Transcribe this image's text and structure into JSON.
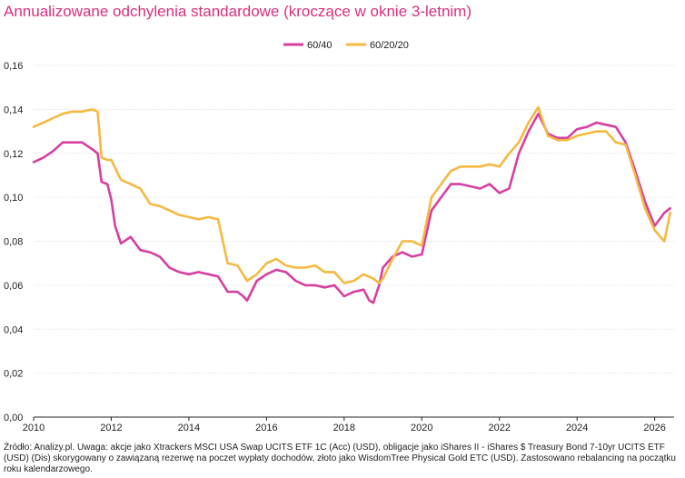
{
  "chart_data": {
    "type": "line",
    "title": "Annualizowane odchylenia standardowe (kroczące w oknie 3-letnim)",
    "xlim": [
      2010,
      2026.5
    ],
    "ylim": [
      0,
      0.16
    ],
    "x_ticks": [
      "2010",
      "2012",
      "2014",
      "2016",
      "2018",
      "2020",
      "2022",
      "2024",
      "2026"
    ],
    "y_ticks": [
      "0,00",
      "0,02",
      "0,04",
      "0,06",
      "0,08",
      "0,10",
      "0,12",
      "0,14",
      "0,16"
    ],
    "grid": "horizontal",
    "legend_position": "top-right",
    "series": [
      {
        "name": "60/40",
        "color": "#d63fa0",
        "x": [
          2010.0,
          2010.25,
          2010.5,
          2010.75,
          2011.0,
          2011.25,
          2011.5,
          2011.65,
          2011.75,
          2011.9,
          2012.0,
          2012.1,
          2012.25,
          2012.5,
          2012.75,
          2013.0,
          2013.25,
          2013.5,
          2013.75,
          2014.0,
          2014.25,
          2014.5,
          2014.75,
          2015.0,
          2015.25,
          2015.4,
          2015.5,
          2015.75,
          2016.0,
          2016.25,
          2016.5,
          2016.75,
          2017.0,
          2017.25,
          2017.5,
          2017.75,
          2018.0,
          2018.25,
          2018.5,
          2018.65,
          2018.75,
          2018.9,
          2019.0,
          2019.25,
          2019.5,
          2019.75,
          2020.0,
          2020.25,
          2020.5,
          2020.75,
          2021.0,
          2021.25,
          2021.5,
          2021.75,
          2022.0,
          2022.25,
          2022.5,
          2022.75,
          2023.0,
          2023.25,
          2023.5,
          2023.75,
          2024.0,
          2024.25,
          2024.5,
          2024.75,
          2025.0,
          2025.25,
          2025.5,
          2025.75,
          2026.0,
          2026.25,
          2026.4
        ],
        "values": [
          0.116,
          0.118,
          0.121,
          0.125,
          0.125,
          0.125,
          0.122,
          0.12,
          0.107,
          0.106,
          0.099,
          0.087,
          0.079,
          0.082,
          0.076,
          0.075,
          0.073,
          0.068,
          0.066,
          0.065,
          0.066,
          0.065,
          0.064,
          0.057,
          0.057,
          0.055,
          0.053,
          0.062,
          0.065,
          0.067,
          0.066,
          0.062,
          0.06,
          0.06,
          0.059,
          0.06,
          0.055,
          0.057,
          0.058,
          0.053,
          0.052,
          0.06,
          0.068,
          0.073,
          0.075,
          0.073,
          0.074,
          0.094,
          0.1,
          0.106,
          0.106,
          0.105,
          0.104,
          0.106,
          0.102,
          0.104,
          0.12,
          0.13,
          0.138,
          0.129,
          0.127,
          0.127,
          0.131,
          0.132,
          0.134,
          0.133,
          0.132,
          0.125,
          0.112,
          0.098,
          0.087,
          0.093,
          0.095
        ]
      },
      {
        "name": "60/20/20",
        "color": "#f4b942",
        "x": [
          2010.0,
          2010.25,
          2010.5,
          2010.75,
          2011.0,
          2011.25,
          2011.5,
          2011.65,
          2011.75,
          2011.9,
          2012.0,
          2012.25,
          2012.5,
          2012.75,
          2013.0,
          2013.25,
          2013.5,
          2013.75,
          2014.0,
          2014.25,
          2014.5,
          2014.75,
          2015.0,
          2015.25,
          2015.5,
          2015.75,
          2016.0,
          2016.25,
          2016.5,
          2016.75,
          2017.0,
          2017.25,
          2017.5,
          2017.75,
          2018.0,
          2018.25,
          2018.5,
          2018.75,
          2018.9,
          2019.0,
          2019.25,
          2019.5,
          2019.75,
          2020.0,
          2020.25,
          2020.5,
          2020.75,
          2021.0,
          2021.25,
          2021.5,
          2021.75,
          2022.0,
          2022.25,
          2022.5,
          2022.75,
          2023.0,
          2023.25,
          2023.5,
          2023.75,
          2024.0,
          2024.25,
          2024.5,
          2024.75,
          2025.0,
          2025.25,
          2025.5,
          2025.75,
          2026.0,
          2026.25,
          2026.4
        ],
        "values": [
          0.132,
          0.134,
          0.136,
          0.138,
          0.139,
          0.139,
          0.14,
          0.139,
          0.118,
          0.117,
          0.117,
          0.108,
          0.106,
          0.104,
          0.097,
          0.096,
          0.094,
          0.092,
          0.091,
          0.09,
          0.091,
          0.09,
          0.07,
          0.069,
          0.062,
          0.065,
          0.07,
          0.072,
          0.069,
          0.068,
          0.068,
          0.069,
          0.066,
          0.066,
          0.061,
          0.062,
          0.065,
          0.063,
          0.061,
          0.063,
          0.072,
          0.08,
          0.08,
          0.078,
          0.1,
          0.106,
          0.112,
          0.114,
          0.114,
          0.114,
          0.115,
          0.114,
          0.12,
          0.125,
          0.134,
          0.141,
          0.128,
          0.126,
          0.126,
          0.128,
          0.129,
          0.13,
          0.13,
          0.125,
          0.124,
          0.11,
          0.095,
          0.085,
          0.08,
          0.093
        ]
      }
    ]
  },
  "source_text": "Źródło: Analizy.pl. Uwaga: akcje jako Xtrackers MSCI USA Swap UCITS ETF 1C (Acc) (USD), obligacje jako iShares II - iShares $ Treasury Bond 7-10yr UCITS ETF (USD) (Dis) skorygowany o zawiązaną rezerwę na poczet wypłaty dochodów, złoto jako WisdomTree Physical Gold ETC (USD). Zastosowano rebalancing na początku roku kalendarzowego."
}
